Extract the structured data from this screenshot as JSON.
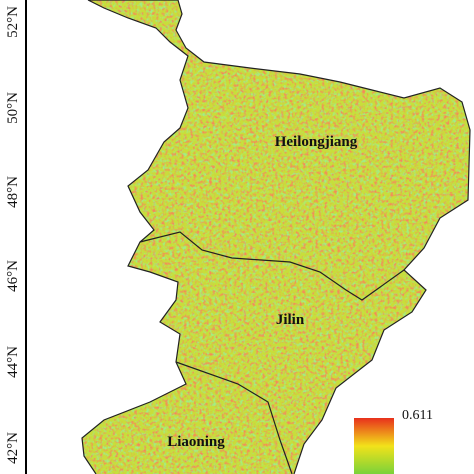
{
  "latitude_labels": [
    "52°N",
    "50°N",
    "48°N",
    "46°N",
    "44°N",
    "42°N"
  ],
  "provinces": [
    "Heilongjiang",
    "Jilin",
    "Liaoning"
  ],
  "legend": {
    "max_label": "0.611"
  }
}
